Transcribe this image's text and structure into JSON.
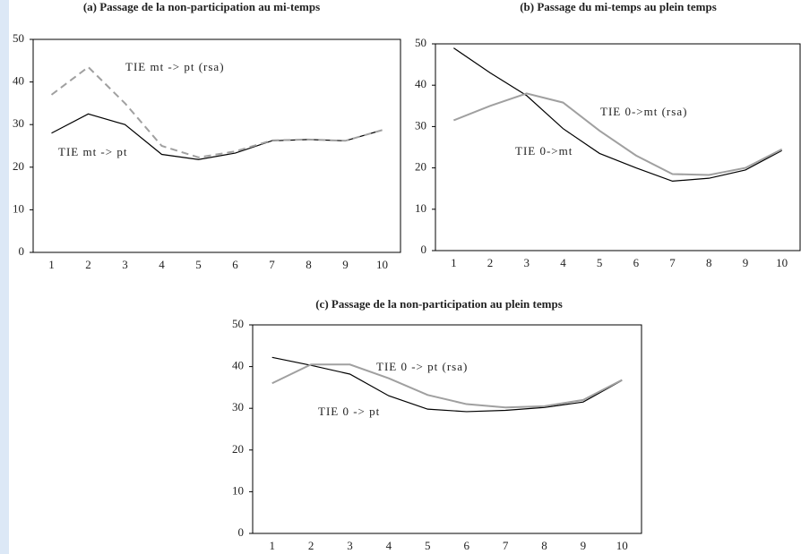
{
  "chart_data": [
    {
      "type": "line",
      "title": "(a) Passage de la non-participation au mi-temps",
      "categories": [
        "1",
        "2",
        "3",
        "4",
        "5",
        "6",
        "7",
        "8",
        "9",
        "10"
      ],
      "ylim": [
        0,
        50
      ],
      "yticks": [
        0,
        10,
        20,
        30,
        40,
        50
      ],
      "grid": false,
      "series": [
        {
          "name": "TIE mt -> pt",
          "color": "#000000",
          "line_style": "solid",
          "values": [
            28,
            32.5,
            30,
            23,
            21.8,
            23.3,
            26.2,
            26.5,
            26.2,
            28.7
          ]
        },
        {
          "name": "TIE mt -> pt (rsa)",
          "color": "#a0a0a0",
          "line_style": "dashed",
          "values": [
            37,
            43.5,
            35,
            25,
            22.3,
            23.7,
            26.3,
            26.5,
            26.2,
            28.7
          ]
        }
      ]
    },
    {
      "type": "line",
      "title": "(b) Passage du mi-temps au plein temps",
      "categories": [
        "1",
        "2",
        "3",
        "4",
        "5",
        "6",
        "7",
        "8",
        "9",
        "10"
      ],
      "ylim": [
        0,
        50
      ],
      "yticks": [
        0,
        10,
        20,
        30,
        40,
        50
      ],
      "grid": false,
      "series": [
        {
          "name": "TIE 0->mt",
          "color": "#000000",
          "line_style": "solid",
          "values": [
            49,
            43,
            37.5,
            29.5,
            23.5,
            20,
            16.8,
            17.5,
            19.5,
            24.2
          ]
        },
        {
          "name": "TIE 0->mt (rsa)",
          "color": "#a0a0a0",
          "line_style": "solid",
          "values": [
            31.5,
            35,
            38,
            35.8,
            29,
            23,
            18.5,
            18.3,
            20,
            24.5
          ]
        }
      ]
    },
    {
      "type": "line",
      "title": "(c) Passage de la non-participation au plein temps",
      "categories": [
        "1",
        "2",
        "3",
        "4",
        "5",
        "6",
        "7",
        "8",
        "9",
        "10"
      ],
      "ylim": [
        0,
        50
      ],
      "yticks": [
        0,
        10,
        20,
        30,
        40,
        50
      ],
      "grid": false,
      "series": [
        {
          "name": "TIE 0 -> pt",
          "color": "#000000",
          "line_style": "solid",
          "values": [
            42.2,
            40.3,
            38.2,
            33,
            29.8,
            29.2,
            29.5,
            30.2,
            31.5,
            36.7
          ]
        },
        {
          "name": "TIE 0 -> pt (rsa)",
          "color": "#a0a0a0",
          "line_style": "solid",
          "values": [
            36,
            40.5,
            40.5,
            37.2,
            33.2,
            31,
            30.2,
            30.5,
            32,
            36.8
          ]
        }
      ]
    }
  ]
}
